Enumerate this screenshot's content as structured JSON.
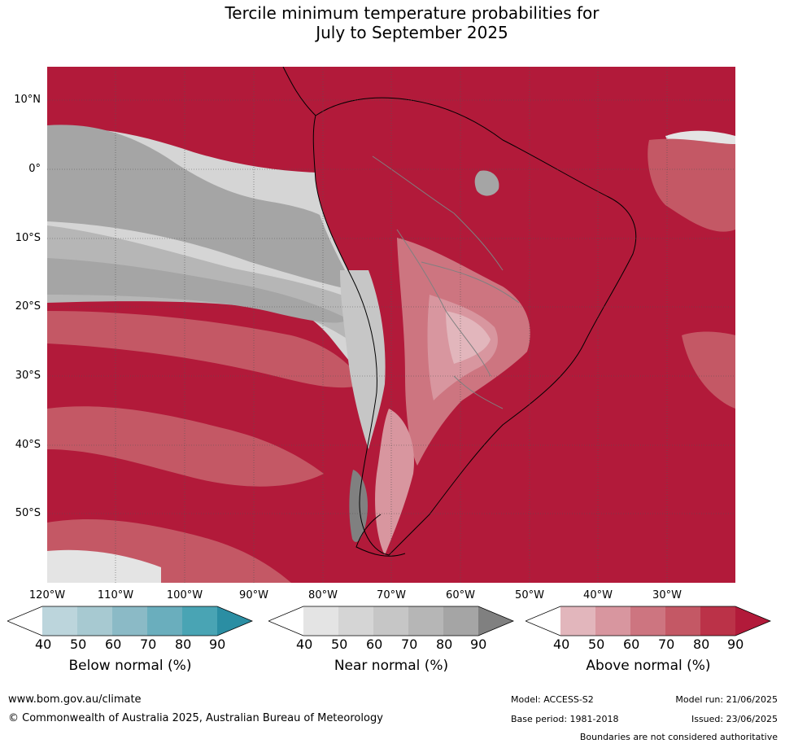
{
  "title_line1": "Tercile minimum temperature probabilities for",
  "title_line2": "July to September 2025",
  "lat_labels": [
    "10°N",
    "0°",
    "10°S",
    "20°S",
    "30°S",
    "40°S",
    "50°S"
  ],
  "lon_labels": [
    "120°W",
    "110°W",
    "100°W",
    "90°W",
    "80°W",
    "70°W",
    "60°W",
    "50°W",
    "40°W",
    "30°W"
  ],
  "legends": [
    {
      "title": "Below normal (%)",
      "ticks": [
        "40",
        "50",
        "60",
        "70",
        "80",
        "90"
      ],
      "colors": [
        "#ffffff",
        "#bcd5dc",
        "#a7c9d1",
        "#8bbac6",
        "#6aaebd",
        "#49a4b4",
        "#2b8ea3"
      ]
    },
    {
      "title": "Near normal (%)",
      "ticks": [
        "40",
        "50",
        "60",
        "70",
        "80",
        "90"
      ],
      "colors": [
        "#ffffff",
        "#e4e4e4",
        "#d5d5d5",
        "#c6c6c6",
        "#b6b6b6",
        "#a5a5a5",
        "#808080"
      ]
    },
    {
      "title": "Above normal (%)",
      "ticks": [
        "40",
        "50",
        "60",
        "70",
        "80",
        "90"
      ],
      "colors": [
        "#ffffff",
        "#e2b6bc",
        "#d8969f",
        "#cd7580",
        "#c45865",
        "#bb3248",
        "#b21a3a"
      ]
    }
  ],
  "footer": {
    "website": "www.bom.gov.au/climate",
    "copyright": "© Commonwealth of Australia 2025, Australian Bureau of Meteorology",
    "model": "Model: ACCESS-S2",
    "base_period": "Base period: 1981-2018",
    "model_run": "Model run: 21/06/2025",
    "issued": "Issued: 23/06/2025",
    "disclaimer": "Boundaries are not considered authoritative"
  }
}
